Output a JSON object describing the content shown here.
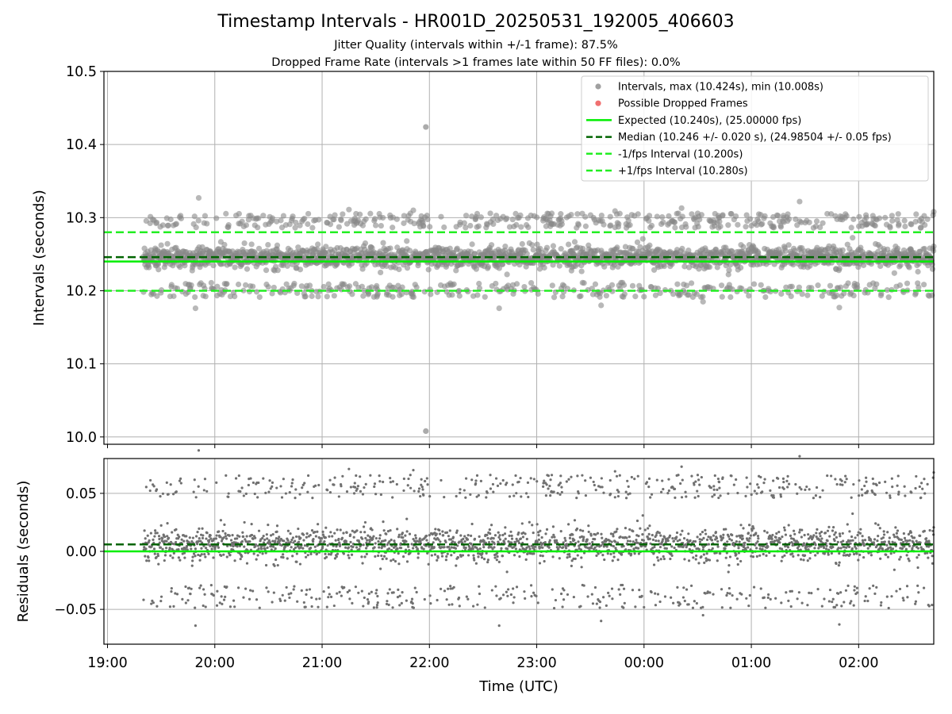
{
  "title": "Timestamp Intervals - HR001D_20250531_192005_406603",
  "subtitle_1": "Jitter Quality (intervals within +/-1 frame): 87.5%",
  "subtitle_2": "Dropped Frame Rate (intervals >1 frames late within 50 FF files): 0.0%",
  "colors": {
    "points": "#808080",
    "dropped": "#ff4040",
    "expected": "#00ee00",
    "median": "#006400",
    "band": "#22ee22",
    "grid": "#b0b0b0"
  },
  "chart_data": [
    {
      "type": "scatter",
      "panel": "top",
      "xlabel": "Time (UTC)",
      "ylabel": "Intervals (seconds)",
      "xlim": [
        "18:58",
        "02:42"
      ],
      "ylim": [
        9.99,
        10.5
      ],
      "yticks": [
        "10.0",
        "10.1",
        "10.2",
        "10.3",
        "10.4",
        "10.5"
      ],
      "grid": true,
      "legend_position": "top-right",
      "legend": [
        {
          "key": "points",
          "style": "dot",
          "color": "#a0a0a0",
          "label": "Intervals, max (10.424s), min (10.008s)"
        },
        {
          "key": "dropped",
          "style": "dot",
          "color": "#f07070",
          "label": "Possible Dropped Frames"
        },
        {
          "key": "expected",
          "style": "solid",
          "color": "#00ee00",
          "label": "Expected (10.240s), (25.00000 fps)"
        },
        {
          "key": "median",
          "style": "dashed",
          "color": "#006400",
          "label": "Median (10.246 +/- 0.020 s), (24.98504 +/- 0.05 fps)"
        },
        {
          "key": "minus",
          "style": "dashed",
          "color": "#22ee22",
          "label": "-1/fps Interval (10.200s)"
        },
        {
          "key": "plus",
          "style": "dashed",
          "color": "#22ee22",
          "label": "+1/fps Interval (10.280s)"
        }
      ],
      "reference_lines": {
        "expected": 10.24,
        "median": 10.246,
        "minus_one_frame": 10.2,
        "plus_one_frame": 10.28
      },
      "series": {
        "start_time": "19:20",
        "end_time": "02:42",
        "center": 10.246,
        "max": 10.424,
        "min": 10.008,
        "max_time": "21:58",
        "min_time": "21:58",
        "outlier_points": [
          [
            19.85,
            10.327
          ],
          [
            19.82,
            10.176
          ],
          [
            21.25,
            10.311
          ],
          [
            21.85,
            10.31
          ],
          [
            23.73,
            10.309
          ],
          [
            24.35,
            10.313
          ],
          [
            25.45,
            10.322
          ],
          [
            25.83,
            10.302
          ],
          [
            26.7,
            10.308
          ],
          [
            22.65,
            10.176
          ],
          [
            23.6,
            10.18
          ],
          [
            25.82,
            10.177
          ],
          [
            24.55,
            10.185
          ]
        ]
      }
    },
    {
      "type": "scatter",
      "panel": "bottom",
      "xlabel": "Time (UTC)",
      "ylabel": "Residuals (seconds)",
      "xlim": [
        "18:58",
        "02:42"
      ],
      "ylim": [
        -0.08,
        0.08
      ],
      "yticks": [
        "−0.05",
        "0.00",
        "0.05"
      ],
      "xticks": [
        "19:00",
        "20:00",
        "21:00",
        "22:00",
        "23:00",
        "00:00",
        "01:00",
        "02:00"
      ],
      "grid": true,
      "reference_lines": {
        "zero": 0.0,
        "median_offset": 0.006
      },
      "series": {
        "center": 0.006,
        "max": 0.075,
        "min": -0.065
      }
    }
  ]
}
